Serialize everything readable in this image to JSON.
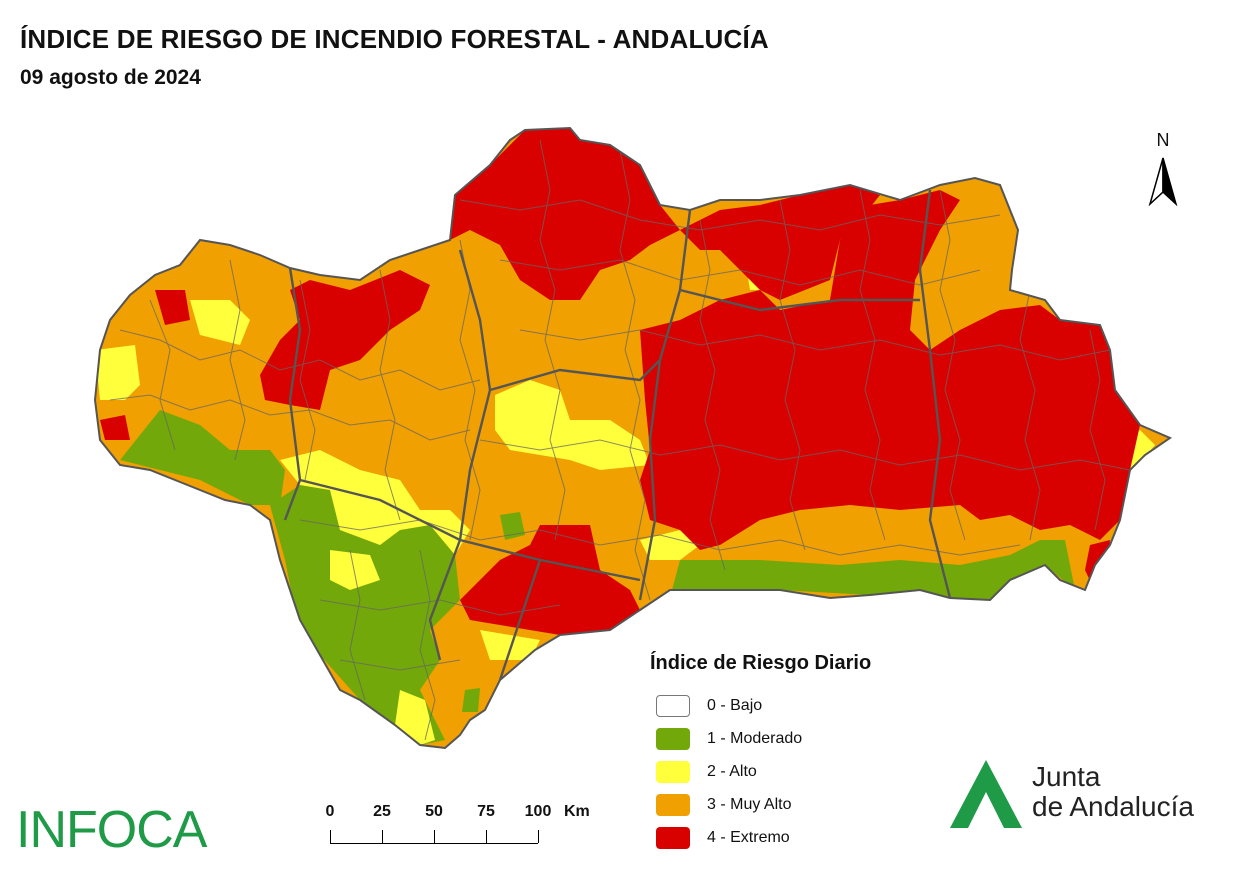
{
  "header": {
    "title": "ÍNDICE DE RIESGO DE INCENDIO FORESTAL - ANDALUCÍA",
    "date": "09 agosto de 2024"
  },
  "north_arrow": {
    "label": "N"
  },
  "legend": {
    "title": "Índice de Riesgo Diario",
    "items": [
      {
        "label": "0 - Bajo",
        "color": "#ffffff"
      },
      {
        "label": "1 - Moderado",
        "color": "#72a80a"
      },
      {
        "label": "2 - Alto",
        "color": "#ffff3c"
      },
      {
        "label": "3 - Muy Alto",
        "color": "#f0a000"
      },
      {
        "label": "4 - Extremo",
        "color": "#d90000"
      }
    ]
  },
  "scale_bar": {
    "ticks": [
      "0",
      "25",
      "50",
      "75",
      "100"
    ],
    "unit": "Km"
  },
  "logos": {
    "infoca": "INFOCA",
    "junta_line1": "Junta",
    "junta_line2": "de Andalucía",
    "junta_color": "#1f9a47"
  },
  "map_colors": {
    "bajo": "#ffffff",
    "moderado": "#72a80a",
    "alto": "#ffff3c",
    "muy_alto": "#f0a000",
    "extremo": "#d90000",
    "boundary": "#555555"
  }
}
